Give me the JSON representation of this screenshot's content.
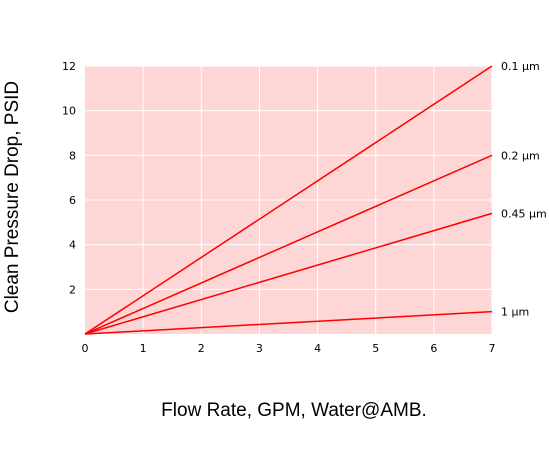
{
  "chart_data": {
    "type": "line",
    "xlabel": "Flow Rate, GPM, Water@AMB.",
    "ylabel": "Clean Pressure Drop, PSID",
    "xlim": [
      0,
      7
    ],
    "ylim": [
      0,
      12
    ],
    "x_ticks": [
      0,
      1,
      2,
      3,
      4,
      5,
      6,
      7
    ],
    "y_ticks": [
      2,
      4,
      6,
      8,
      10,
      12
    ],
    "grid": true,
    "series": [
      {
        "name": "0.1 µm",
        "x": [
          0,
          7
        ],
        "y": [
          0,
          12
        ]
      },
      {
        "name": "0.2 µm",
        "x": [
          0,
          7
        ],
        "y": [
          0,
          8
        ]
      },
      {
        "name": "0.45 µm",
        "x": [
          0,
          7
        ],
        "y": [
          0,
          5.4
        ]
      },
      {
        "name": "1 µm",
        "x": [
          0,
          7
        ],
        "y": [
          0,
          1
        ]
      }
    ],
    "colors": {
      "plot_background": "#ffd6d6",
      "grid": "#ffffff",
      "line": "#ff0000"
    }
  }
}
